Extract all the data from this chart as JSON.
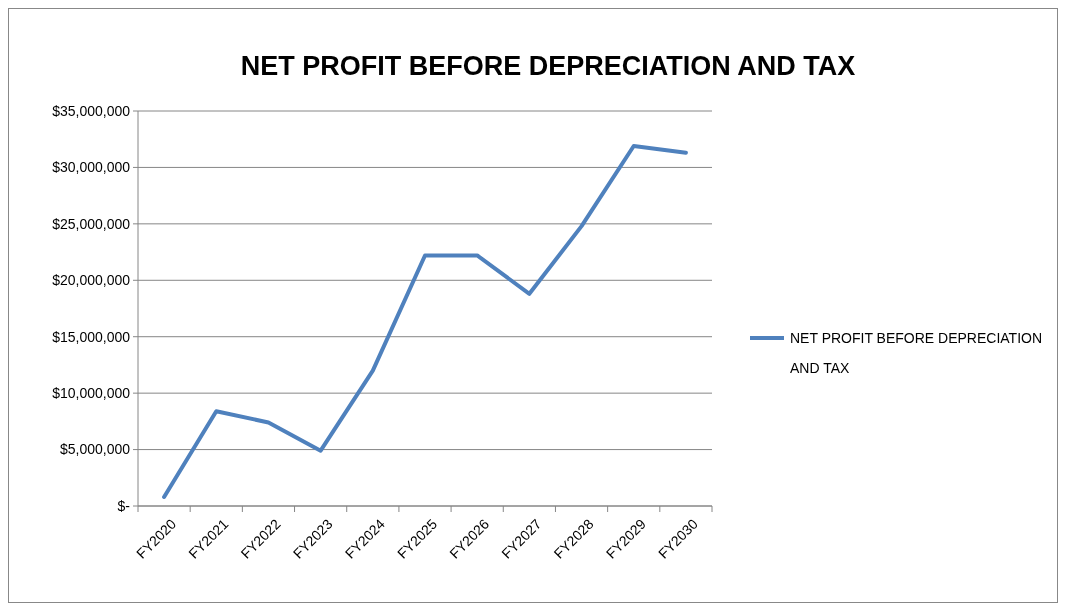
{
  "chart_data": {
    "type": "line",
    "title": "NET PROFIT BEFORE DEPRECIATION AND TAX",
    "categories": [
      "FY2020",
      "FY2021",
      "FY2022",
      "FY2023",
      "FY2024",
      "FY2025",
      "FY2026",
      "FY2027",
      "FY2028",
      "FY2029",
      "FY2030"
    ],
    "series": [
      {
        "name": "NET PROFIT BEFORE DEPRECIATION AND TAX",
        "color": "#4f81bd",
        "values": [
          800000,
          8400000,
          7400000,
          4900000,
          12000000,
          22200000,
          22200000,
          18800000,
          24800000,
          31900000,
          31300000
        ]
      }
    ],
    "ylim": [
      0,
      35000000
    ],
    "yticks": [
      {
        "value": 0,
        "label": "$-"
      },
      {
        "value": 5000000,
        "label": "$5,000,000"
      },
      {
        "value": 10000000,
        "label": "$10,000,000"
      },
      {
        "value": 15000000,
        "label": "$15,000,000"
      },
      {
        "value": 20000000,
        "label": "$20,000,000"
      },
      {
        "value": 25000000,
        "label": "$25,000,000"
      },
      {
        "value": 30000000,
        "label": "$30,000,000"
      },
      {
        "value": 35000000,
        "label": "$35,000,000"
      }
    ],
    "grid": "y",
    "legend": "right",
    "marker": "none",
    "line_style": "solid"
  }
}
